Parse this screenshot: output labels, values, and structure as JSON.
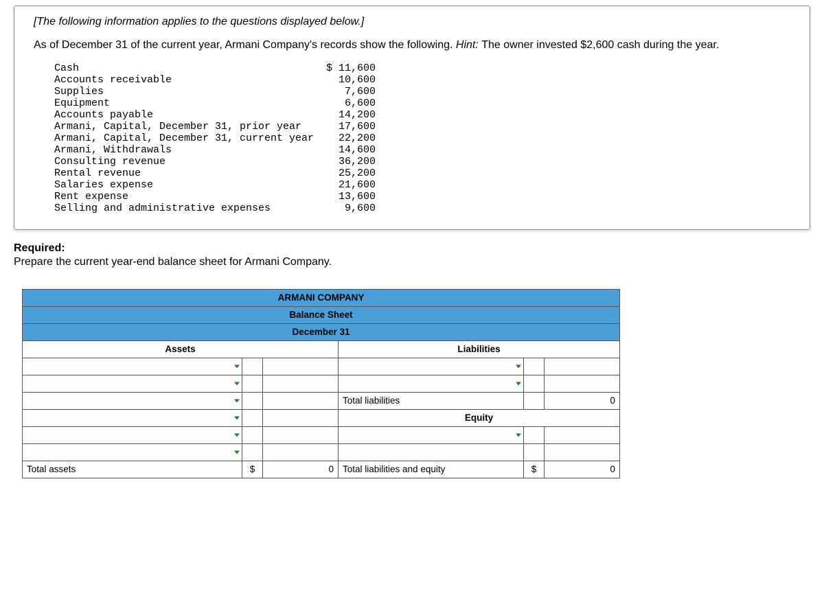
{
  "info": {
    "italic_note": "[The following information applies to the questions displayed below.]",
    "intro_prefix": "As of December 31 of the current year, Armani Company's records show the following. ",
    "hint_word": "Hint: ",
    "hint_rest": "The owner invested $2,600 cash during the year.",
    "records": [
      {
        "label": "Cash",
        "value": "$ 11,600"
      },
      {
        "label": "Accounts receivable",
        "value": "10,600"
      },
      {
        "label": "Supplies",
        "value": "7,600"
      },
      {
        "label": "Equipment",
        "value": "6,600"
      },
      {
        "label": "Accounts payable",
        "value": "14,200"
      },
      {
        "label": "Armani, Capital, December 31, prior year",
        "value": "17,600"
      },
      {
        "label": "Armani, Capital, December 31, current year",
        "value": "22,200"
      },
      {
        "label": "Armani, Withdrawals",
        "value": "14,600"
      },
      {
        "label": "Consulting revenue",
        "value": "36,200"
      },
      {
        "label": "Rental revenue",
        "value": "25,200"
      },
      {
        "label": "Salaries expense",
        "value": "21,600"
      },
      {
        "label": "Rent expense",
        "value": "13,600"
      },
      {
        "label": "Selling and administrative expenses",
        "value": "9,600"
      }
    ]
  },
  "required": {
    "title": "Required:",
    "text": "Prepare the current year-end balance sheet for Armani Company."
  },
  "balance_sheet": {
    "header1": "ARMANI COMPANY",
    "header2": "Balance Sheet",
    "header3": "December 31",
    "assets_label": "Assets",
    "liabilities_label": "Liabilities",
    "equity_label": "Equity",
    "total_assets_label": "Total assets",
    "total_liabilities_label": "Total liabilities",
    "total_liab_equity_label": "Total liabilities and equity",
    "currency": "$",
    "zero": "0",
    "col_widths": {
      "asset_desc": 320,
      "asset_cur": 30,
      "asset_amt": 110,
      "liab_desc": 270,
      "liab_cur": 30,
      "liab_amt": 110
    },
    "colors": {
      "header_bg": "#4a9fd8",
      "border": "#555555",
      "arrow": "#2a7a3a"
    }
  }
}
